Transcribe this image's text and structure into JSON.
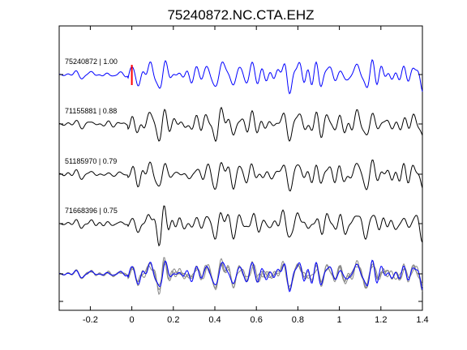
{
  "chart_data": {
    "type": "line",
    "title": "75240872.NC.CTA.EHZ",
    "xlabel": "",
    "ylabel": "",
    "xlim": [
      -0.35,
      1.4
    ],
    "xticks": [
      {
        "value": -0.2,
        "label": "-0.2"
      },
      {
        "value": 0,
        "label": "0"
      },
      {
        "value": 0.2,
        "label": "0.2"
      },
      {
        "value": 0.4,
        "label": "0.4"
      },
      {
        "value": 0.6,
        "label": "0.6"
      },
      {
        "value": 0.8,
        "label": "0.8"
      },
      {
        "value": 1,
        "label": "1"
      },
      {
        "value": 1.2,
        "label": "1.2"
      },
      {
        "value": 1.4,
        "label": "1.4"
      }
    ],
    "grid": false,
    "pick_time": 0.0,
    "colors": {
      "reference": "#0000ff",
      "match": "#000000",
      "overlay": "#888888",
      "pick": "#ff0000"
    },
    "traces": [
      {
        "label": "75240872 | 1.00",
        "color": "#0000ff",
        "seed": 3
      },
      {
        "label": "71155881 | 0.88",
        "color": "#000000",
        "seed": 11
      },
      {
        "label": "51185970 | 0.79",
        "color": "#000000",
        "seed": 23
      },
      {
        "label": "71668396 | 0.75",
        "color": "#000000",
        "seed": 37
      }
    ]
  }
}
